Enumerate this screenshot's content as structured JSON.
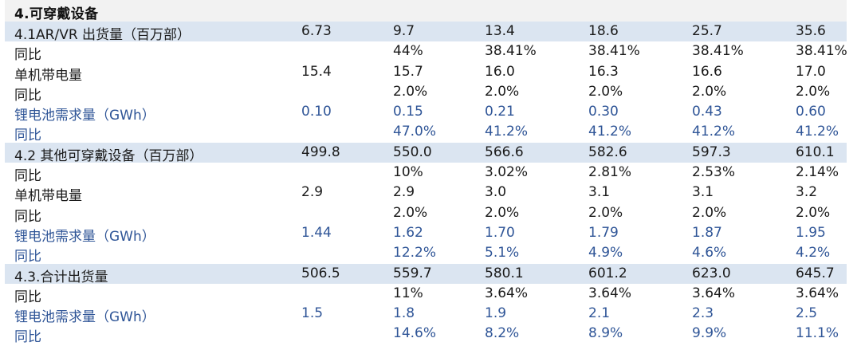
{
  "title": "4.可穿戴设备",
  "colors": {
    "header_bg": "#f2f2f2",
    "section_bg": "#dbe5f1",
    "text_default": "#1a1a1a",
    "text_blue": "#2f5597"
  },
  "rows": [
    {
      "type": "section",
      "label": "4.1AR/VR 出货量（百万部）",
      "values": [
        "6.73",
        "9.7",
        "13.4",
        "18.6",
        "25.7",
        "35.6"
      ]
    },
    {
      "type": "plain",
      "label": "同比",
      "values": [
        "",
        "44%",
        "38.41%",
        "38.41%",
        "38.41%",
        "38.41%"
      ]
    },
    {
      "type": "plain",
      "label": "单机带电量",
      "values": [
        "15.4",
        "15.7",
        "16.0",
        "16.3",
        "16.6",
        "17.0"
      ]
    },
    {
      "type": "plain",
      "label": "同比",
      "values": [
        "",
        "2.0%",
        "2.0%",
        "2.0%",
        "2.0%",
        "2.0%"
      ]
    },
    {
      "type": "blue",
      "label": "锂电池需求量（GWh）",
      "values": [
        "0.10",
        "0.15",
        "0.21",
        "0.30",
        "0.43",
        "0.60"
      ]
    },
    {
      "type": "blue",
      "label": "同比",
      "values": [
        "",
        "47.0%",
        "41.2%",
        "41.2%",
        "41.2%",
        "41.2%"
      ]
    },
    {
      "type": "section",
      "label": "4.2 其他可穿戴设备（百万部）",
      "values": [
        "499.8",
        "550.0",
        "566.6",
        "582.6",
        "597.3",
        "610.1"
      ]
    },
    {
      "type": "plain",
      "label": "同比",
      "values": [
        "",
        "10%",
        "3.02%",
        "2.81%",
        "2.53%",
        "2.14%"
      ]
    },
    {
      "type": "plain",
      "label": "单机带电量",
      "values": [
        "2.9",
        "2.9",
        "3.0",
        "3.1",
        "3.1",
        "3.2"
      ]
    },
    {
      "type": "plain",
      "label": "同比",
      "values": [
        "",
        "2.0%",
        "2.0%",
        "2.0%",
        "2.0%",
        "2.0%"
      ]
    },
    {
      "type": "blue",
      "label": "锂电池需求量（GWh）",
      "values": [
        "1.44",
        "1.62",
        "1.70",
        "1.79",
        "1.87",
        "1.95"
      ]
    },
    {
      "type": "blue",
      "label": "同比",
      "values": [
        "",
        "12.2%",
        "5.1%",
        "4.9%",
        "4.6%",
        "4.2%"
      ]
    },
    {
      "type": "section",
      "label": "4.3.合计出货量",
      "values": [
        "506.5",
        "559.7",
        "580.1",
        "601.2",
        "623.0",
        "645.7"
      ]
    },
    {
      "type": "plain",
      "label": "同比",
      "values": [
        "",
        "11%",
        "3.64%",
        "3.64%",
        "3.64%",
        "3.64%"
      ]
    },
    {
      "type": "blue",
      "label": "锂电池需求量（GWh）",
      "values": [
        "1.5",
        "1.8",
        "1.9",
        "2.1",
        "2.3",
        "2.5"
      ]
    },
    {
      "type": "blue",
      "label": "同比",
      "values": [
        "",
        "14.6%",
        "8.2%",
        "8.9%",
        "9.9%",
        "11.1%"
      ]
    }
  ]
}
